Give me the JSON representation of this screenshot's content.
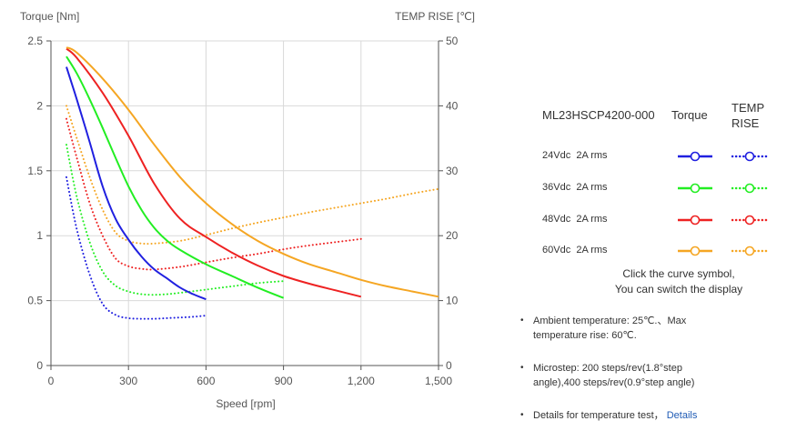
{
  "chart_data": {
    "type": "line",
    "left_axis_title": "Torque  [Nm]",
    "right_axis_title": "TEMP RISE [℃]",
    "xlabel": "Speed [rpm]",
    "xlim": [
      0,
      1500
    ],
    "ylim_left": [
      0,
      2.5
    ],
    "ylim_right": [
      0,
      50
    ],
    "x_ticks": [
      0,
      300,
      600,
      900,
      1200,
      1500
    ],
    "x_tick_labels": [
      "0",
      "300",
      "600",
      "900",
      "1,200",
      "1,500"
    ],
    "y_left_ticks": [
      0,
      0.5,
      1,
      1.5,
      2,
      2.5
    ],
    "y_left_tick_labels": [
      "0",
      "0.5",
      "1",
      "1.5",
      "2",
      "2.5"
    ],
    "y_right_ticks": [
      0,
      10,
      20,
      30,
      40,
      50
    ],
    "y_right_tick_labels": [
      "0",
      "10",
      "20",
      "30",
      "40",
      "50"
    ],
    "grid": true,
    "series": [
      {
        "name": "24Vdc 2A rms Torque",
        "color": "#2020e0",
        "style": "solid",
        "axis": "left",
        "x": [
          60,
          100,
          150,
          200,
          250,
          300,
          350,
          400,
          450,
          500,
          550,
          600
        ],
        "y": [
          2.3,
          2.05,
          1.72,
          1.38,
          1.13,
          0.97,
          0.84,
          0.74,
          0.67,
          0.6,
          0.55,
          0.51
        ]
      },
      {
        "name": "24Vdc 2A rms TEMP RISE",
        "color": "#2020e0",
        "style": "dotted",
        "axis": "right",
        "x": [
          60,
          100,
          150,
          200,
          250,
          300,
          350,
          400,
          450,
          500,
          550,
          600
        ],
        "y": [
          29,
          21,
          14,
          9.5,
          7.8,
          7.3,
          7.2,
          7.2,
          7.3,
          7.4,
          7.5,
          7.7
        ]
      },
      {
        "name": "36Vdc 2A rms Torque",
        "color": "#22ee22",
        "style": "solid",
        "axis": "left",
        "x": [
          60,
          100,
          150,
          200,
          250,
          300,
          350,
          400,
          450,
          500,
          600,
          700,
          800,
          900
        ],
        "y": [
          2.38,
          2.25,
          2.05,
          1.83,
          1.6,
          1.38,
          1.2,
          1.06,
          0.96,
          0.89,
          0.78,
          0.69,
          0.6,
          0.52
        ]
      },
      {
        "name": "36Vdc 2A rms TEMP RISE",
        "color": "#22ee22",
        "style": "dotted",
        "axis": "right",
        "x": [
          60,
          100,
          150,
          200,
          250,
          300,
          350,
          400,
          450,
          500,
          600,
          700,
          800,
          900
        ],
        "y": [
          34,
          26,
          19,
          14.5,
          12.3,
          11.4,
          11.0,
          10.9,
          11.0,
          11.2,
          11.7,
          12.2,
          12.7,
          13.0
        ]
      },
      {
        "name": "48Vdc 2A rms Torque",
        "color": "#ee2222",
        "style": "solid",
        "axis": "left",
        "x": [
          60,
          100,
          200,
          300,
          400,
          500,
          600,
          700,
          800,
          900,
          1000,
          1100,
          1200
        ],
        "y": [
          2.44,
          2.37,
          2.1,
          1.77,
          1.4,
          1.13,
          0.99,
          0.87,
          0.77,
          0.69,
          0.63,
          0.58,
          0.53
        ]
      },
      {
        "name": "48Vdc 2A rms TEMP RISE",
        "color": "#ee2222",
        "style": "dotted",
        "axis": "right",
        "x": [
          60,
          100,
          150,
          200,
          250,
          300,
          350,
          400,
          500,
          600,
          700,
          800,
          900,
          1000,
          1100,
          1200
        ],
        "y": [
          38,
          32,
          25,
          20,
          16.5,
          15.3,
          14.9,
          14.8,
          15.2,
          15.9,
          16.6,
          17.2,
          17.9,
          18.5,
          19.0,
          19.5
        ]
      },
      {
        "name": "60Vdc 2A rms Torque",
        "color": "#f5a623",
        "style": "solid",
        "axis": "left",
        "x": [
          60,
          100,
          200,
          300,
          400,
          500,
          600,
          700,
          800,
          900,
          1000,
          1100,
          1200,
          1300,
          1400,
          1500
        ],
        "y": [
          2.45,
          2.41,
          2.21,
          1.97,
          1.7,
          1.45,
          1.25,
          1.09,
          0.96,
          0.86,
          0.78,
          0.72,
          0.66,
          0.61,
          0.57,
          0.53
        ]
      },
      {
        "name": "60Vdc 2A rms TEMP RISE",
        "color": "#f5a623",
        "style": "dotted",
        "axis": "right",
        "x": [
          60,
          100,
          150,
          200,
          250,
          300,
          350,
          400,
          500,
          600,
          700,
          800,
          900,
          1000,
          1100,
          1200,
          1300,
          1400,
          1500
        ],
        "y": [
          40,
          35,
          29,
          24,
          20.5,
          19.2,
          18.8,
          18.8,
          19.2,
          20.1,
          21.1,
          22.0,
          22.8,
          23.6,
          24.3,
          25.0,
          25.7,
          26.5,
          27.2
        ]
      }
    ]
  },
  "legend": {
    "model": "ML23HSCP4200-000",
    "torque_header": "Torque",
    "temp_header_line1": "TEMP",
    "temp_header_line2": "RISE",
    "rows": [
      {
        "voltage": "24Vdc",
        "current": "2A rms",
        "color": "#2020e0"
      },
      {
        "voltage": "36Vdc",
        "current": "2A rms",
        "color": "#22ee22"
      },
      {
        "voltage": "48Vdc",
        "current": "2A rms",
        "color": "#ee2222"
      },
      {
        "voltage": "60Vdc",
        "current": "2A rms",
        "color": "#f5a623"
      }
    ],
    "hint_line1": "Click the curve symbol,",
    "hint_line2": "You can switch the display"
  },
  "notes": {
    "ambient": "Ambient temperature: 25℃.、Max temperature rise: 60℃.",
    "microstep": "Microstep: 200 steps/rev(1.8°step angle),400 steps/rev(0.9°step angle)",
    "details_text": "Details for temperature test，",
    "details_link": "Details"
  }
}
